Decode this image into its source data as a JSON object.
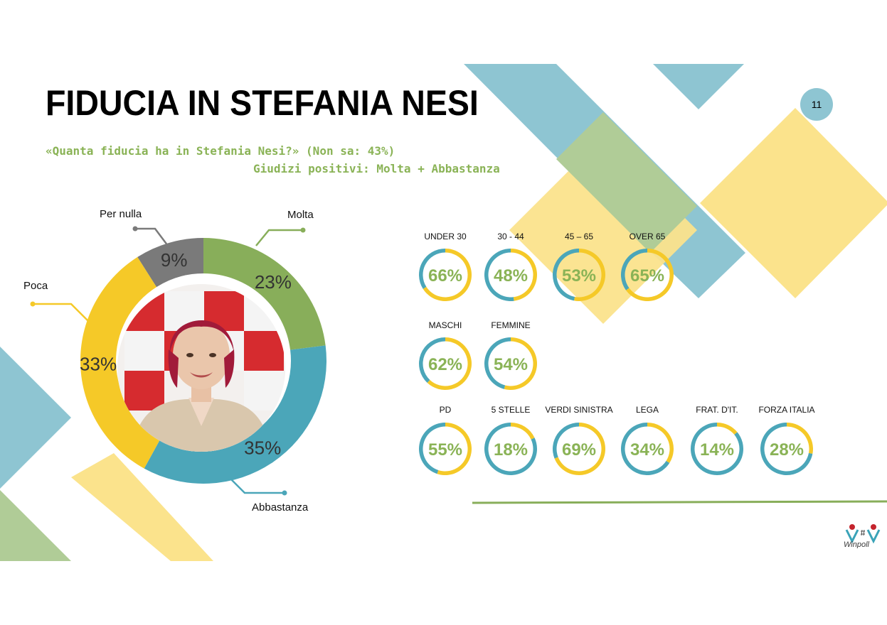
{
  "page": {
    "number": "11"
  },
  "title": "FIDUCIA IN STEFANIA NESI",
  "subtitle_line1": "«Quanta fiducia ha in Stefania Nesi?» (Non sa: 43%)",
  "subtitle_line2": "Giudizi positivi: Molta + Abbastanza",
  "colors": {
    "molta": "#88ae5a",
    "abbastanza": "#4ba6b9",
    "poca": "#f5c928",
    "per_nulla": "#7a7a7a",
    "accent_green": "#8ab356",
    "ring_blue": "#4ba6b9",
    "ring_yellow": "#f5c928"
  },
  "chart_data": [
    {
      "type": "pie",
      "categories": [
        "Molta",
        "Abbastanza",
        "Poca",
        "Per nulla"
      ],
      "values": [
        23,
        35,
        33,
        9
      ],
      "value_labels": [
        "23%",
        "35%",
        "33%",
        "9%"
      ],
      "legend": "callout-labels",
      "image": "portrait-photo"
    },
    {
      "type": "pie",
      "groups": [
        {
          "items": [
            {
              "label": "UNDER 30",
              "value": 66,
              "text": "66%"
            },
            {
              "label": "30 - 44",
              "value": 48,
              "text": "48%"
            },
            {
              "label": "45 – 65",
              "value": 53,
              "text": "53%"
            },
            {
              "label": "OVER 65",
              "value": 65,
              "text": "65%"
            }
          ]
        },
        {
          "items": [
            {
              "label": "MASCHI",
              "value": 62,
              "text": "62%"
            },
            {
              "label": "FEMMINE",
              "value": 54,
              "text": "54%"
            }
          ]
        },
        {
          "items": [
            {
              "label": "PD",
              "value": 55,
              "text": "55%"
            },
            {
              "label": "5 STELLE",
              "value": 18,
              "text": "18%"
            },
            {
              "label": "VERDI SINISTRA",
              "value": 69,
              "text": "69%"
            },
            {
              "label": "LEGA",
              "value": 34,
              "text": "34%"
            },
            {
              "label": "FRAT. D'IT.",
              "value": 14,
              "text": "14%"
            },
            {
              "label": "FORZA ITALIA",
              "value": 28,
              "text": "28%"
            }
          ]
        }
      ]
    }
  ],
  "logo": {
    "text": "Winpoll"
  }
}
